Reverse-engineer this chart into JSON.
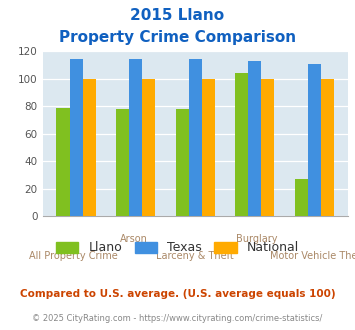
{
  "title_line1": "2015 Llano",
  "title_line2": "Property Crime Comparison",
  "categories": [
    "All Property Crime",
    "Arson",
    "Larceny & Theft",
    "Burglary",
    "Motor Vehicle Theft"
  ],
  "category_labels_top": [
    "",
    "Arson",
    "",
    "Burglary",
    ""
  ],
  "category_labels_bottom": [
    "All Property Crime",
    "",
    "Larceny & Theft",
    "",
    "Motor Vehicle Theft"
  ],
  "llano_values": [
    79,
    78,
    78,
    104,
    27
  ],
  "texas_values": [
    114,
    114,
    114,
    113,
    111
  ],
  "national_values": [
    100,
    100,
    100,
    100,
    100
  ],
  "llano_color": "#80c020",
  "texas_color": "#4090e0",
  "national_color": "#ffaa00",
  "ylim": [
    0,
    120
  ],
  "yticks": [
    0,
    20,
    40,
    60,
    80,
    100,
    120
  ],
  "background_color": "#dce8f0",
  "title_color": "#1060c0",
  "xlabel_top_color": "#aa8866",
  "xlabel_bottom_color": "#aa8866",
  "legend_labels": [
    "Llano",
    "Texas",
    "National"
  ],
  "footnote1": "Compared to U.S. average. (U.S. average equals 100)",
  "footnote2": "© 2025 CityRating.com - https://www.cityrating.com/crime-statistics/",
  "footnote1_color": "#cc4400",
  "footnote2_color": "#888888",
  "fig_width": 3.55,
  "fig_height": 3.3,
  "dpi": 100
}
